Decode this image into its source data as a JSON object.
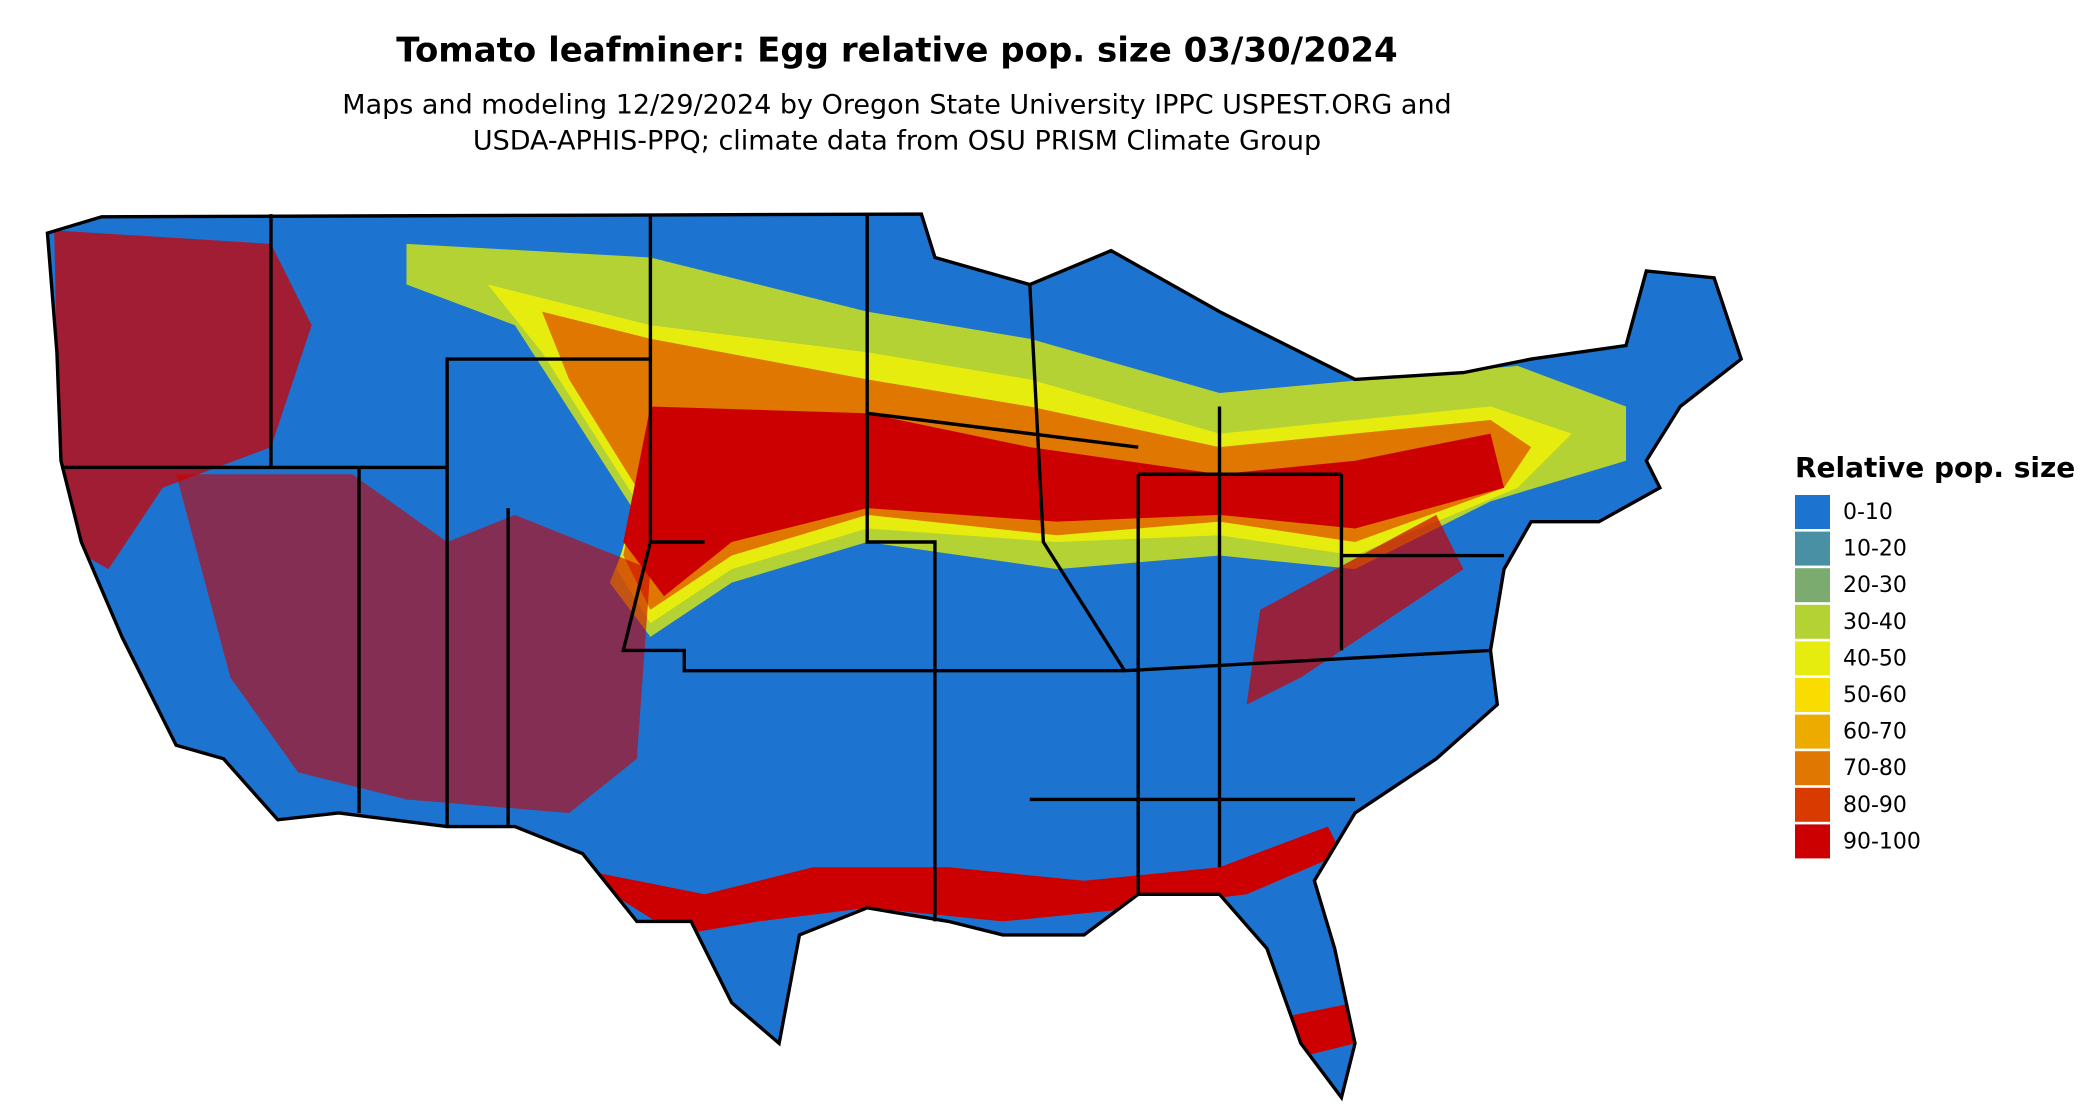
{
  "title": "Tomato leafminer: Egg relative pop. size 03/30/2024",
  "subtitle": [
    "Maps and modeling 12/29/2024 by Oregon State University IPPC USPEST.ORG and",
    "USDA-APHIS-PPQ; climate data from OSU PRISM Climate Group"
  ],
  "legend": {
    "title": "Relative pop. size",
    "items": [
      {
        "label": "0-10",
        "color": "#1c74d0"
      },
      {
        "label": "10-20",
        "color": "#4a90a4"
      },
      {
        "label": "20-30",
        "color": "#7bab6f"
      },
      {
        "label": "30-40",
        "color": "#b5d234"
      },
      {
        "label": "40-50",
        "color": "#e6ed0e"
      },
      {
        "label": "50-60",
        "color": "#f9dd00"
      },
      {
        "label": "60-70",
        "color": "#edab00"
      },
      {
        "label": "70-80",
        "color": "#e07700"
      },
      {
        "label": "80-90",
        "color": "#d93a00"
      },
      {
        "label": "90-100",
        "color": "#cc0000"
      }
    ]
  }
}
